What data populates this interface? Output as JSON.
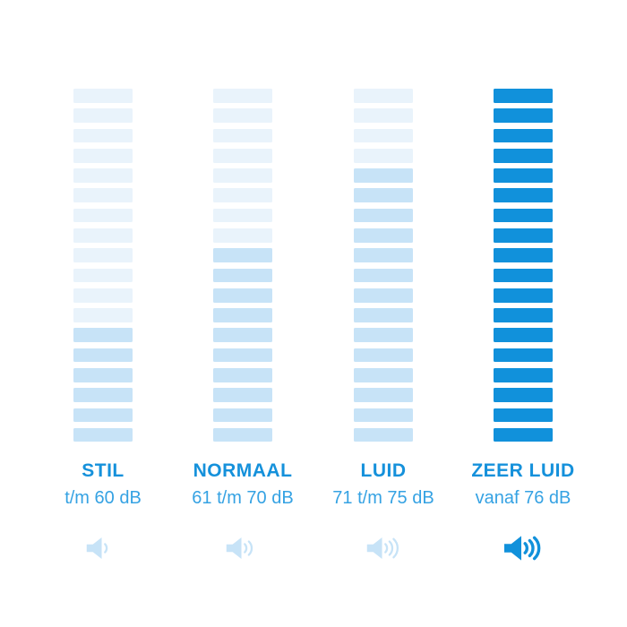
{
  "chart_data": {
    "type": "bar",
    "title": "",
    "xlabel": "",
    "ylabel": "",
    "grid": false,
    "legend_position": "none",
    "categories": [
      "STIL",
      "NORMAAL",
      "LUID",
      "ZEER LUID"
    ],
    "ranges": [
      "t/m 60 dB",
      "61 t/m 70 dB",
      "71 t/m 75 dB",
      "vanaf 76 dB"
    ],
    "segments_per_column": 18,
    "segments_filled": [
      6,
      10,
      14,
      18
    ],
    "fill_style": [
      "tint",
      "tint",
      "tint",
      "solid"
    ],
    "icon_waves": [
      1,
      2,
      3,
      3
    ],
    "icon_style": [
      "tint",
      "tint",
      "tint",
      "solid"
    ],
    "colors": {
      "segment_empty": "#E9F3FB",
      "segment_tint": "#C7E3F7",
      "segment_solid": "#1191DB",
      "category_text": "#1591DB",
      "range_text": "#35A2E3",
      "icon_tint": "#C7E3F7",
      "icon_solid": "#1191DB",
      "background": "#FFFFFF"
    }
  },
  "columns": [
    {
      "name": "STIL",
      "range": "t/m 60 dB"
    },
    {
      "name": "NORMAAL",
      "range": "61 t/m 70 dB"
    },
    {
      "name": "LUID",
      "range": "71 t/m 75 dB"
    },
    {
      "name": "ZEER LUID",
      "range": "vanaf 76 dB"
    }
  ]
}
